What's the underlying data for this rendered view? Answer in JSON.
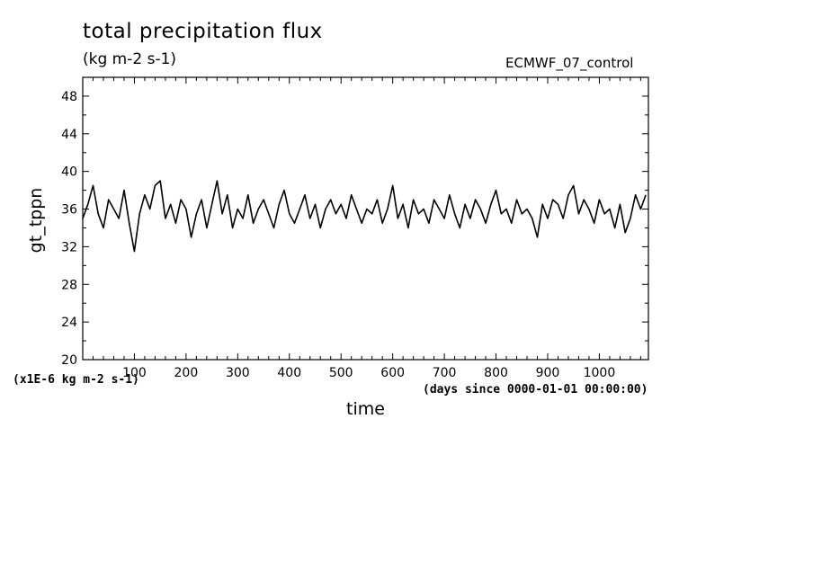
{
  "chart_data": {
    "type": "line",
    "title": "total precipitation flux",
    "units": "(kg m-2 s-1)",
    "experiment": "ECMWF_07_control",
    "xlabel": "time",
    "ylabel": "gt_tppn",
    "scale_note": "(x1E-6 kg m-2 s-1)",
    "time_units": "(days since 0000-01-01 00:00:00)",
    "xlim": [
      0,
      1095
    ],
    "ylim": [
      20,
      50
    ],
    "xticks": [
      100,
      200,
      300,
      400,
      500,
      600,
      700,
      800,
      900,
      1000
    ],
    "yticks": [
      20,
      24,
      28,
      32,
      36,
      40,
      44,
      48
    ],
    "grid": false,
    "series": [
      {
        "color": "#000000",
        "x": [
          0,
          10,
          20,
          30,
          40,
          50,
          60,
          70,
          80,
          90,
          100,
          110,
          120,
          130,
          140,
          150,
          160,
          170,
          180,
          190,
          200,
          210,
          220,
          230,
          240,
          250,
          260,
          270,
          280,
          290,
          300,
          310,
          320,
          330,
          340,
          350,
          360,
          370,
          380,
          390,
          400,
          410,
          420,
          430,
          440,
          450,
          460,
          470,
          480,
          490,
          500,
          510,
          520,
          530,
          540,
          550,
          560,
          570,
          580,
          590,
          600,
          610,
          620,
          630,
          640,
          650,
          660,
          670,
          680,
          690,
          700,
          710,
          720,
          730,
          740,
          750,
          760,
          770,
          780,
          790,
          800,
          810,
          820,
          830,
          840,
          850,
          860,
          870,
          880,
          890,
          900,
          910,
          920,
          930,
          940,
          950,
          960,
          970,
          980,
          990,
          1000,
          1010,
          1020,
          1030,
          1040,
          1050,
          1060,
          1070,
          1080,
          1090
        ],
        "y": [
          35.0,
          36.5,
          38.5,
          35.5,
          34.0,
          37.0,
          36.0,
          35.0,
          38.0,
          34.5,
          31.5,
          35.5,
          37.5,
          36.0,
          38.5,
          39.0,
          35.0,
          36.5,
          34.5,
          37.0,
          36.0,
          33.0,
          35.5,
          37.0,
          34.0,
          36.5,
          39.0,
          35.5,
          37.5,
          34.0,
          36.0,
          35.0,
          37.5,
          34.5,
          36.0,
          37.0,
          35.5,
          34.0,
          36.5,
          38.0,
          35.5,
          34.5,
          36.0,
          37.5,
          35.0,
          36.5,
          34.0,
          36.0,
          37.0,
          35.5,
          36.5,
          35.0,
          37.5,
          36.0,
          34.5,
          36.0,
          35.5,
          37.0,
          34.5,
          36.0,
          38.5,
          35.0,
          36.5,
          34.0,
          37.0,
          35.5,
          36.0,
          34.5,
          37.0,
          36.0,
          35.0,
          37.5,
          35.5,
          34.0,
          36.5,
          35.0,
          37.0,
          36.0,
          34.5,
          36.5,
          38.0,
          35.5,
          36.0,
          34.5,
          37.0,
          35.5,
          36.0,
          35.0,
          33.0,
          36.5,
          35.0,
          37.0,
          36.5,
          35.0,
          37.5,
          38.5,
          35.5,
          37.0,
          36.0,
          34.5,
          37.0,
          35.5,
          36.0,
          34.0,
          36.5,
          33.5,
          35.0,
          37.5,
          36.0,
          37.5
        ]
      }
    ]
  }
}
